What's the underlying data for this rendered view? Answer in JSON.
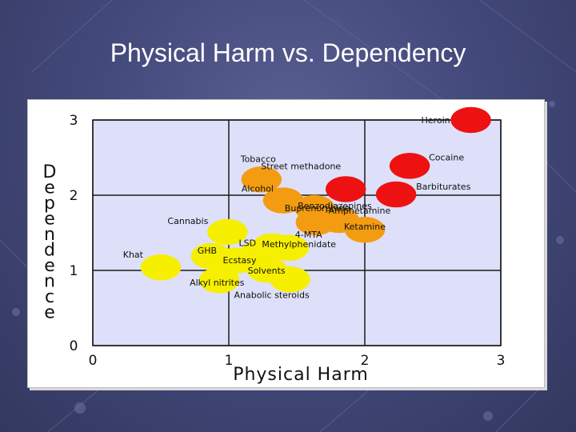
{
  "slide": {
    "title": "Physical Harm vs. Dependency"
  },
  "colors": {
    "plot_bg": "#dde0f8",
    "grid": "#1c1c1c",
    "red": "#ee1111",
    "orange": "#f39c12",
    "yellow": "#f6ef00"
  },
  "chart_data": {
    "type": "scatter",
    "title": "",
    "xlabel": "Physical Harm",
    "ylabel": "Dependence",
    "xlim": [
      0,
      3
    ],
    "ylim": [
      0,
      3
    ],
    "xticks": [
      "0",
      "1",
      "2",
      "3"
    ],
    "yticks": [
      "0",
      "1",
      "2",
      "3"
    ],
    "grid": true,
    "points": [
      {
        "label": "Heroin",
        "x": 2.78,
        "y": 3.0,
        "color": "red"
      },
      {
        "label": "Cocaine",
        "x": 2.33,
        "y": 2.39,
        "color": "red"
      },
      {
        "label": "Street methadone",
        "x": 1.86,
        "y": 2.08,
        "color": "red"
      },
      {
        "label": "Barbiturates",
        "x": 2.23,
        "y": 2.01,
        "color": "red"
      },
      {
        "label": "Tobacco",
        "x": 1.24,
        "y": 2.21,
        "color": "orange"
      },
      {
        "label": "Alcohol",
        "x": 1.4,
        "y": 1.93,
        "color": "orange"
      },
      {
        "label": "Benzodiazepines",
        "x": 1.63,
        "y": 1.83,
        "color": "orange"
      },
      {
        "label": "Buprenorphine",
        "x": 1.64,
        "y": 1.64,
        "color": "orange"
      },
      {
        "label": "Amphetamine",
        "x": 1.81,
        "y": 1.67,
        "color": "orange"
      },
      {
        "label": "Ketamine",
        "x": 2.0,
        "y": 1.54,
        "color": "orange"
      },
      {
        "label": "Cannabis",
        "x": 0.99,
        "y": 1.51,
        "color": "yellow"
      },
      {
        "label": "LSD",
        "x": 1.23,
        "y": 1.23,
        "color": "yellow"
      },
      {
        "label": "4-MTA",
        "x": 1.44,
        "y": 1.3,
        "color": "yellow"
      },
      {
        "label": "Methylphenidate",
        "x": 1.32,
        "y": 1.32,
        "color": "yellow"
      },
      {
        "label": "GHB",
        "x": 0.87,
        "y": 1.19,
        "color": "yellow"
      },
      {
        "label": "Ecstasy",
        "x": 1.05,
        "y": 1.13,
        "color": "yellow"
      },
      {
        "label": "Khat",
        "x": 0.5,
        "y": 1.04,
        "color": "yellow"
      },
      {
        "label": "Solvents",
        "x": 1.28,
        "y": 1.01,
        "color": "yellow"
      },
      {
        "label": "Alkyl nitrites",
        "x": 0.93,
        "y": 0.87,
        "color": "yellow"
      },
      {
        "label": "Anabolic steroids",
        "x": 1.45,
        "y": 0.88,
        "color": "yellow"
      }
    ]
  }
}
